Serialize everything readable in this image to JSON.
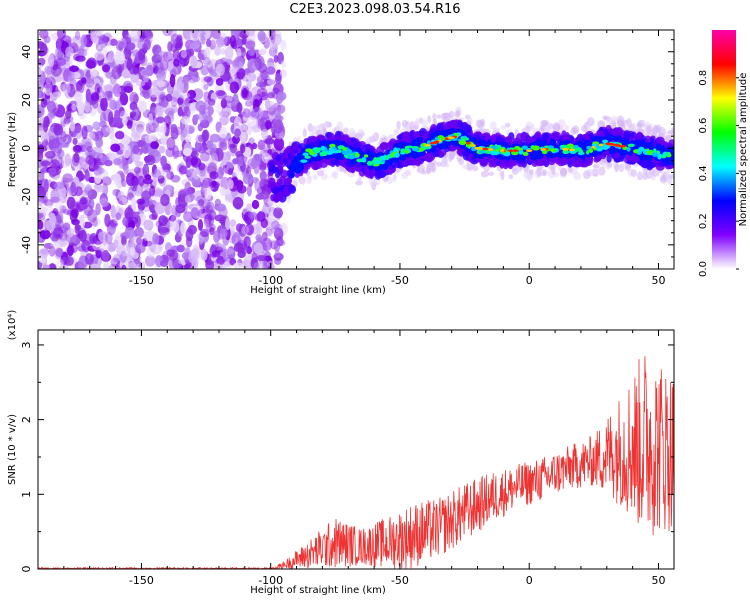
{
  "title": "C2E3.2023.098.03.54.R16",
  "chart_data": [
    {
      "type": "heatmap",
      "xlabel": "Height of straight line (km)",
      "ylabel": "Frequency (Hz)",
      "xlim": [
        -190,
        56
      ],
      "ylim": [
        -50,
        49
      ],
      "xticks": [
        -150,
        -100,
        -50,
        0,
        50
      ],
      "yticks": [
        -40,
        -20,
        0,
        20,
        40
      ],
      "colorbar": {
        "label": "Normalized spectral amplitude",
        "range": [
          0.0,
          1.0
        ],
        "ticks": [
          0.0,
          0.2,
          0.4,
          0.6,
          0.8
        ],
        "tick_labels": [
          "0.0",
          "0.2",
          "0.4",
          "0.6",
          "0.8"
        ],
        "colors": [
          "#ffffff",
          "#7f00ff",
          "#0000ff",
          "#00ffff",
          "#00ff00",
          "#ffff00",
          "#ff0000",
          "#ff00aa"
        ]
      },
      "description_ridge": {
        "x": [
          -95,
          -85,
          -75,
          -65,
          -58,
          -50,
          -40,
          -35,
          -28,
          -20,
          -10,
          0,
          10,
          20,
          30,
          40,
          50,
          55
        ],
        "freq": [
          -12,
          -2,
          0,
          -4,
          -6,
          -1,
          1,
          3,
          5,
          0,
          -1,
          -1,
          0,
          -1,
          2,
          0,
          -2,
          -3
        ]
      },
      "noise_region_x": [
        -190,
        -100
      ]
    },
    {
      "type": "line",
      "xlabel": "Height of straight line (km)",
      "ylabel": "SNR (10 * v/v)",
      "scale_label": "(x10⁴)",
      "xlim": [
        -190,
        56
      ],
      "ylim": [
        0,
        3.2
      ],
      "xticks": [
        -150,
        -100,
        -50,
        0,
        50
      ],
      "yticks": [
        0,
        1,
        2,
        3
      ],
      "line_color": "#ee3333",
      "envelope": {
        "x": [
          -190,
          -100,
          -95,
          -85,
          -75,
          -65,
          -55,
          -45,
          -35,
          -25,
          -15,
          -5,
          5,
          15,
          25,
          35,
          45,
          55
        ],
        "mean": [
          0.0,
          0.0,
          0.05,
          0.2,
          0.35,
          0.3,
          0.35,
          0.45,
          0.55,
          0.75,
          0.95,
          1.1,
          1.2,
          1.35,
          1.45,
          1.6,
          1.7,
          1.6
        ],
        "amp": [
          0.01,
          0.01,
          0.05,
          0.2,
          0.35,
          0.25,
          0.35,
          0.45,
          0.4,
          0.4,
          0.35,
          0.3,
          0.3,
          0.3,
          0.35,
          0.75,
          1.3,
          1.1
        ]
      }
    }
  ]
}
